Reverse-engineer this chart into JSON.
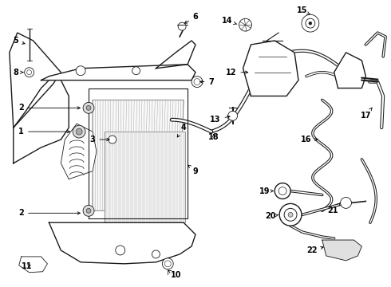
{
  "bg_color": "#ffffff",
  "line_color": "#1a1a1a",
  "fig_width": 4.9,
  "fig_height": 3.6,
  "dpi": 100,
  "label_fs": 7.0,
  "lw_main": 1.0,
  "lw_thin": 0.6
}
